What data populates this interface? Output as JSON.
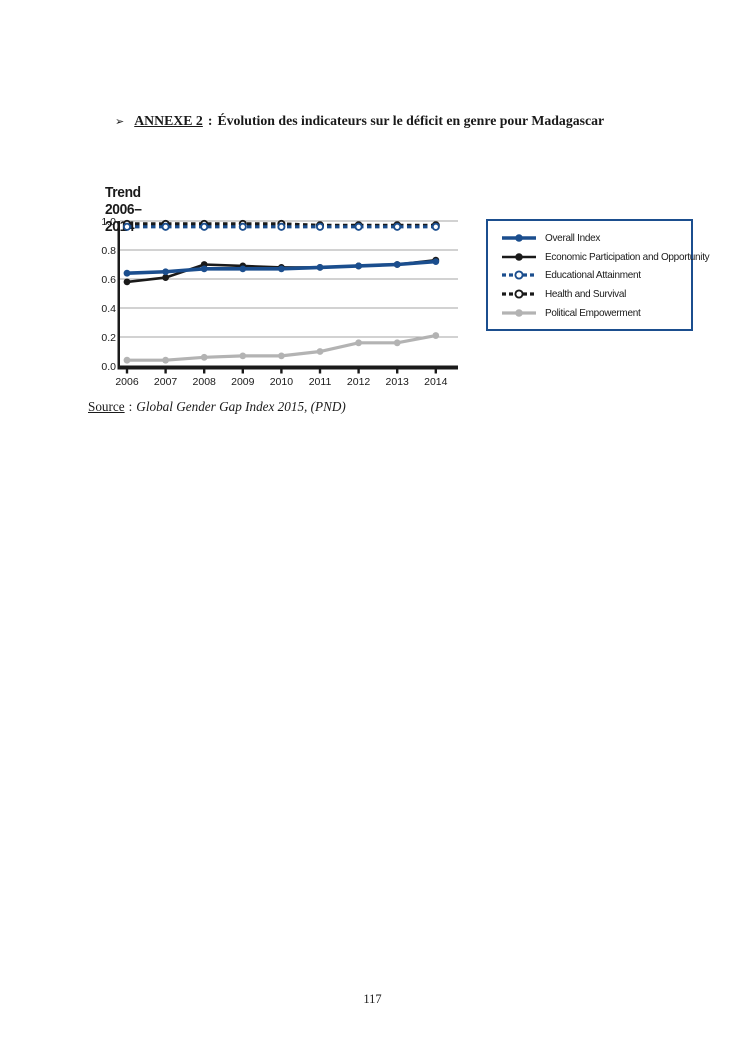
{
  "page": {
    "header": {
      "bullet": "➢",
      "annexe_label": "ANNEXE 2",
      "separator": ":",
      "title": "Évolution des indicateurs sur le déficit en genre pour Madagascar"
    },
    "source": {
      "label": "Source",
      "separator": ":",
      "text": "Global Gender Gap Index 2015, (PND)"
    },
    "page_number": "117"
  },
  "chart_data": {
    "type": "line",
    "title": "Trend 2006–2014",
    "title_color": "#1b4e8e",
    "xlabel": "",
    "ylabel": "",
    "categories": [
      "2006",
      "2007",
      "2008",
      "2009",
      "2010",
      "2011",
      "2012",
      "2013",
      "2014"
    ],
    "ylim": [
      0.0,
      1.0
    ],
    "ytick_labels": [
      "0.0",
      "0.2",
      "0.4",
      "0.6",
      "0.8",
      "1.0"
    ],
    "grid": true,
    "grid_color": "#a6a6a6",
    "axis_color": "#1a1a1a",
    "legend_position": "right",
    "legend_border_color": "#1b4e8e",
    "series": [
      {
        "name": "Overall Index",
        "color": "#1b4e8e",
        "style": "solid",
        "marker": "filled",
        "width": 3.6,
        "values": [
          0.64,
          0.65,
          0.67,
          0.67,
          0.67,
          0.68,
          0.69,
          0.7,
          0.72
        ]
      },
      {
        "name": "Economic Participation and Opportunity",
        "color": "#1a1a1a",
        "style": "solid",
        "marker": "filled",
        "width": 2.6,
        "values": [
          0.58,
          0.61,
          0.7,
          0.69,
          0.68,
          0.68,
          0.69,
          0.7,
          0.73
        ]
      },
      {
        "name": "Educational Attainment",
        "color": "#1b4e8e",
        "style": "dashed",
        "marker": "open",
        "width": 3.2,
        "values": [
          0.96,
          0.96,
          0.96,
          0.96,
          0.96,
          0.96,
          0.96,
          0.96,
          0.96
        ]
      },
      {
        "name": "Health and Survival",
        "color": "#1a1a1a",
        "style": "dashed",
        "marker": "open",
        "width": 3.2,
        "values": [
          0.98,
          0.98,
          0.98,
          0.98,
          0.98,
          0.97,
          0.97,
          0.97,
          0.97
        ]
      },
      {
        "name": "Political Empowerment",
        "color": "#b3b3b3",
        "style": "solid",
        "marker": "filled",
        "width": 3.2,
        "values": [
          0.04,
          0.04,
          0.06,
          0.07,
          0.07,
          0.1,
          0.16,
          0.16,
          0.21
        ]
      }
    ]
  }
}
